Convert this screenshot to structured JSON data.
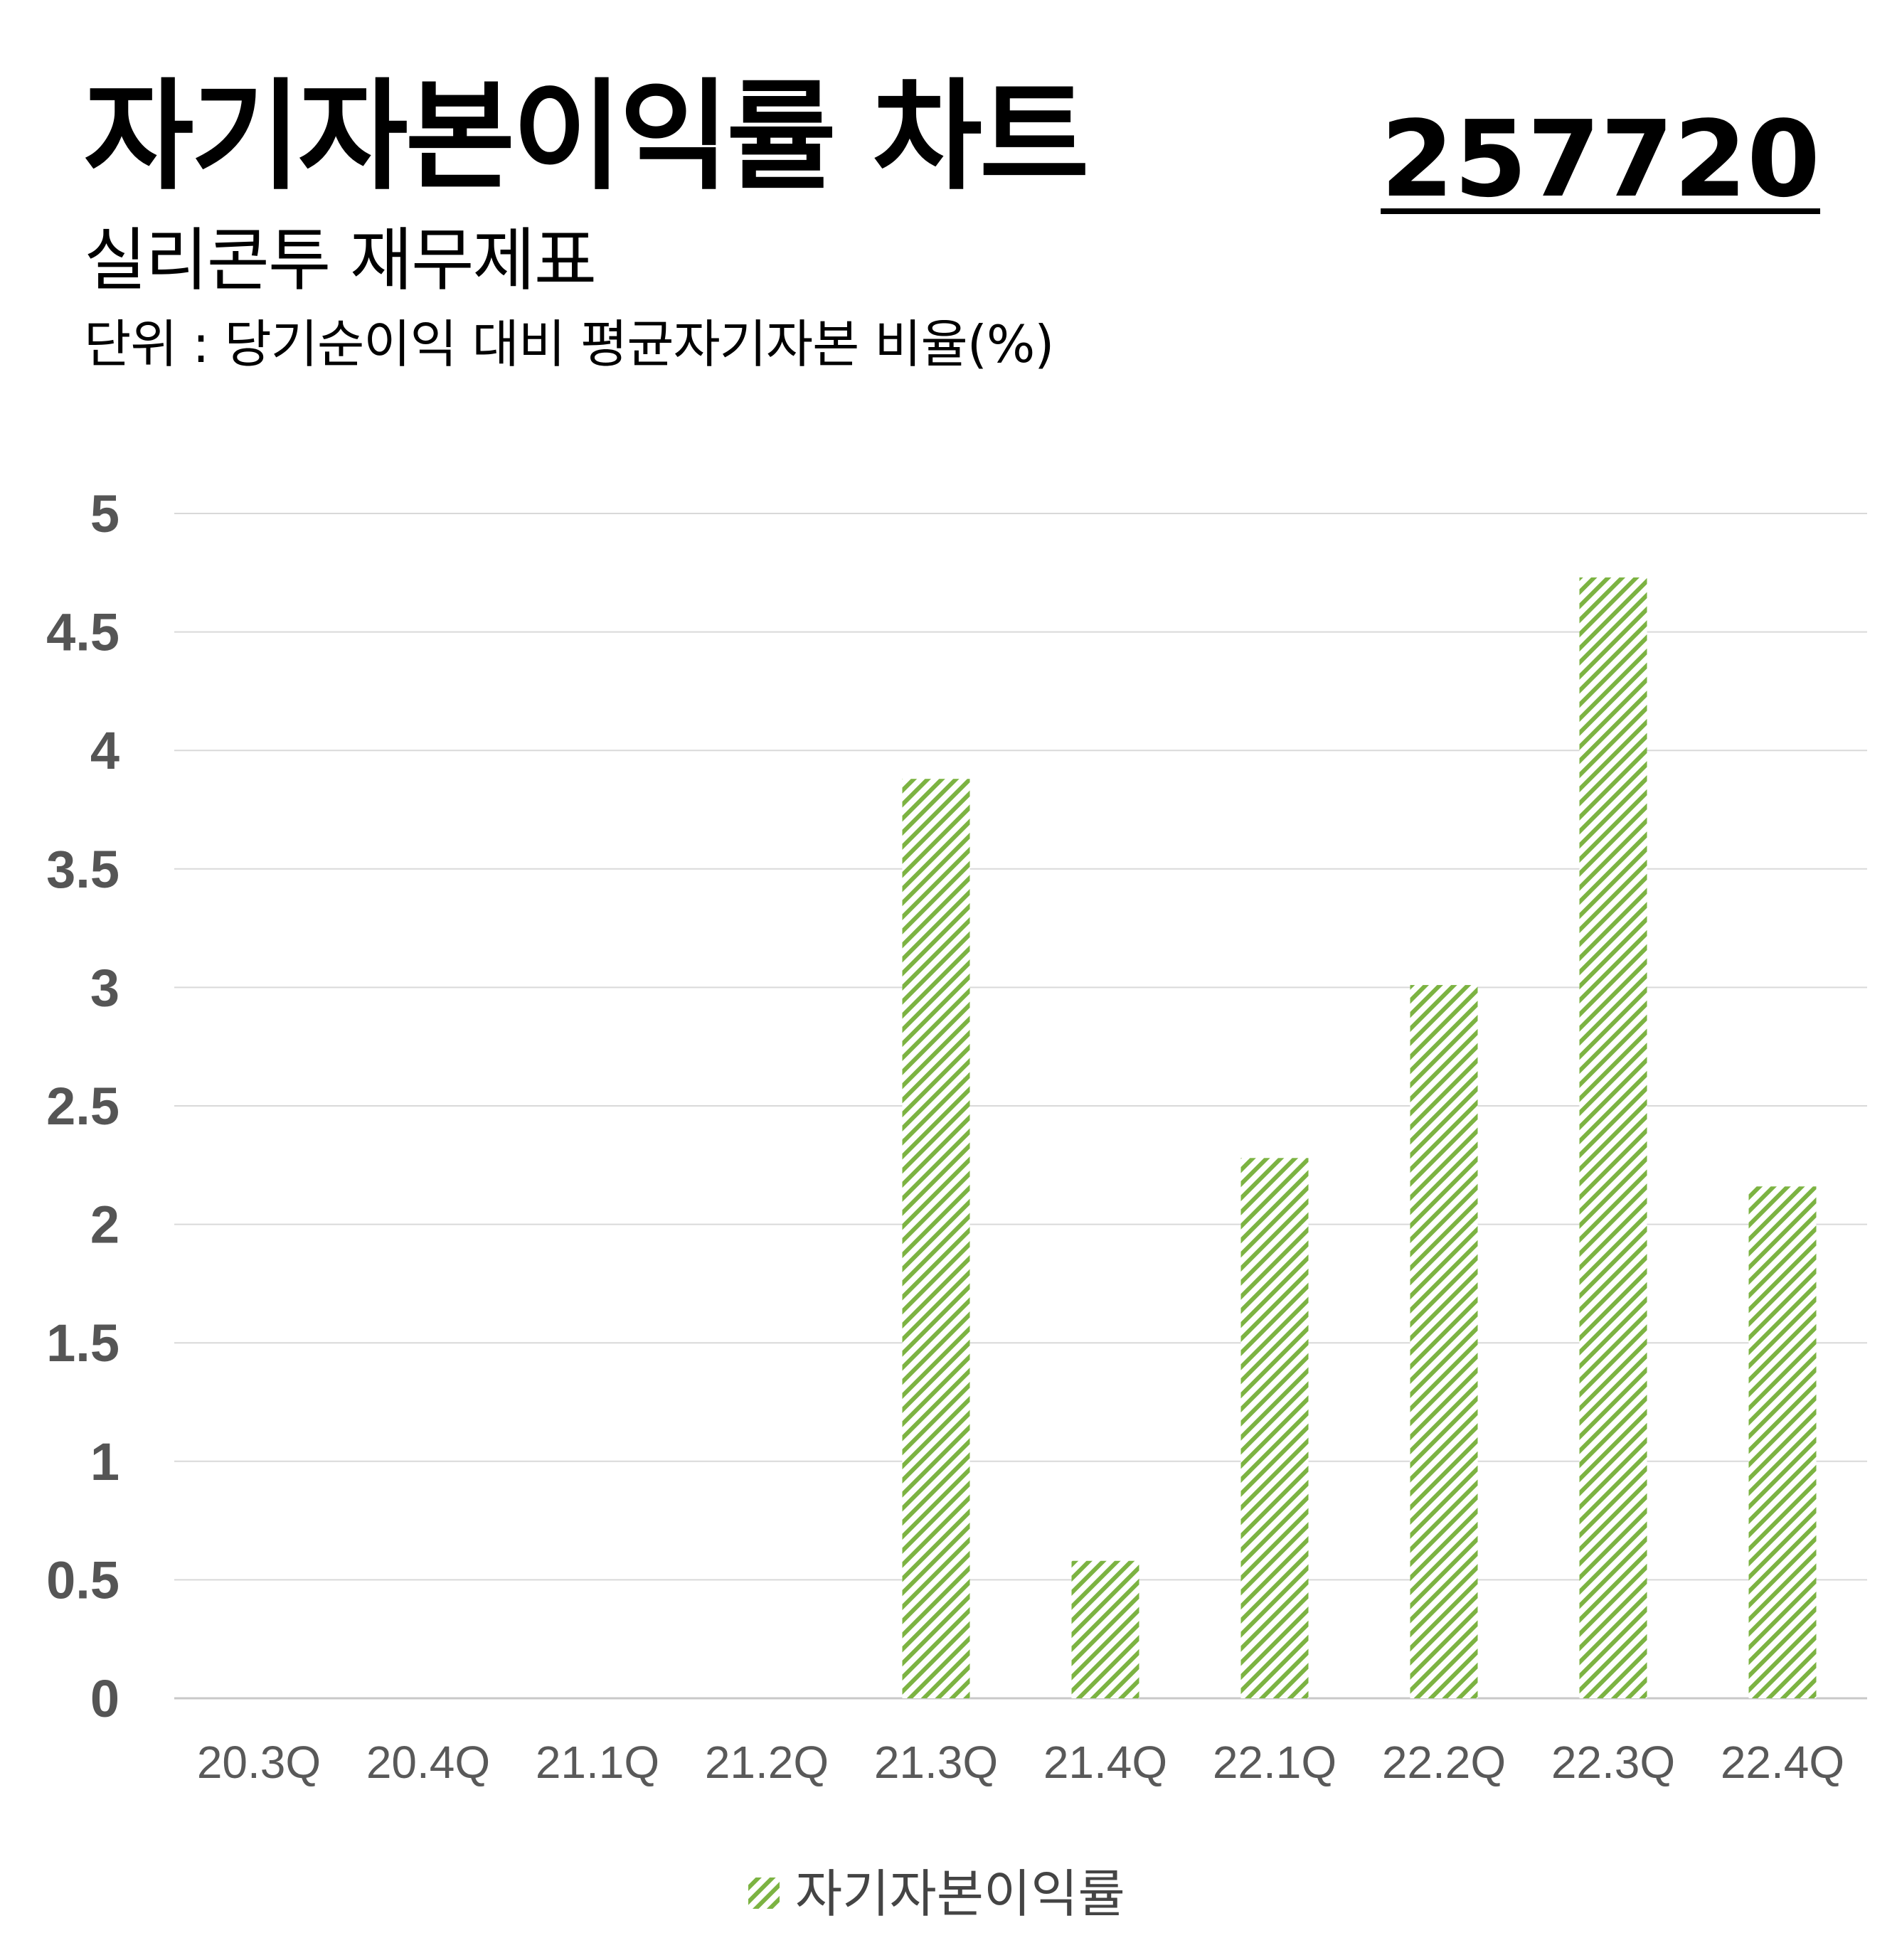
{
  "header": {
    "title": "자기자본이익률 차트",
    "stock_code": "257720",
    "subtitle": "실리콘투 재무제표",
    "unit": "단위 : 당기순이익 대비 평균자기자본 비율(%)"
  },
  "colors": {
    "bar": "#7cb342",
    "grid": "#d9d9d9",
    "axis_text": "#555555"
  },
  "chart_data": {
    "type": "bar",
    "categories": [
      "20.3Q",
      "20.4Q",
      "21.1Q",
      "21.2Q",
      "21.3Q",
      "21.4Q",
      "22.1Q",
      "22.2Q",
      "22.3Q",
      "22.4Q"
    ],
    "series": [
      {
        "name": "자기자본이익률",
        "values": [
          0,
          0,
          0,
          0,
          3.88,
          0.58,
          2.28,
          3.01,
          4.73,
          2.16
        ]
      }
    ],
    "yticks": [
      "0",
      "0.5",
      "1",
      "1.5",
      "2",
      "2.5",
      "3",
      "3.5",
      "4",
      "4.5",
      "5"
    ],
    "ylim": [
      0,
      5
    ],
    "grid": true,
    "legend": "bottom-center",
    "fill_pattern": "diagonal-hatch"
  }
}
